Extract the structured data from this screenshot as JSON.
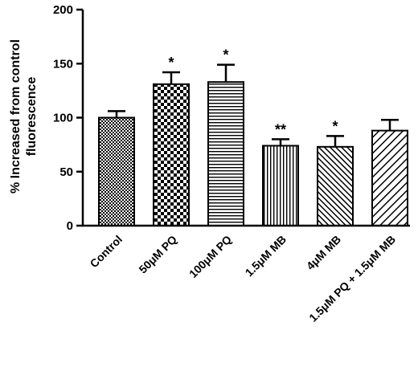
{
  "chart_data": {
    "type": "bar",
    "categories": [
      "Control",
      "50μM PQ",
      "100μM PQ",
      "1.5μM MB",
      "4μM MB",
      "1.5μM PQ + 1.5μM MB"
    ],
    "values": [
      100,
      131,
      133,
      74,
      73,
      88
    ],
    "errors": [
      6,
      11,
      16,
      6,
      10,
      10
    ],
    "significance": [
      "",
      "*",
      "*",
      "**",
      "*",
      ""
    ],
    "patterns": [
      "fine-check",
      "checker",
      "horizontal",
      "vertical",
      "diagonal",
      "diagonal-wide"
    ],
    "ylabel_lines": [
      "% Increased from control",
      "fluorescence"
    ],
    "xlabel": "",
    "ylim": [
      0,
      200
    ],
    "yticks": [
      0,
      50,
      100,
      150,
      200
    ],
    "grid": false,
    "legend": "none"
  }
}
